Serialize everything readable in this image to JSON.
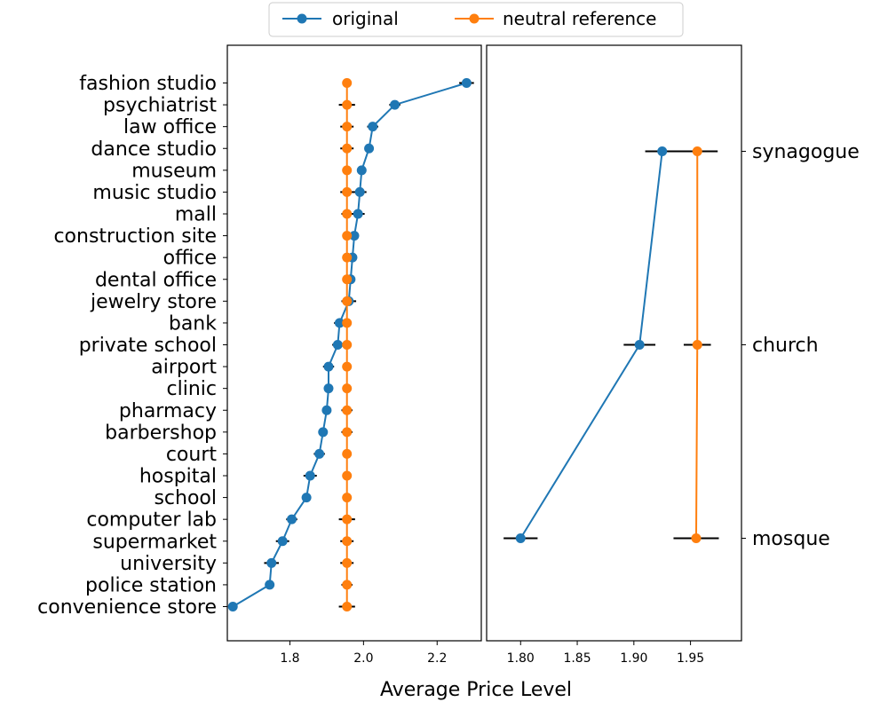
{
  "chart_data": {
    "type": "scatter",
    "xlabel": "Average Price Level",
    "legend": {
      "placement": "top-center",
      "entries": [
        {
          "name": "original",
          "color": "#1f77b4"
        },
        {
          "name": "neutral reference",
          "color": "#ff7f0e"
        }
      ]
    },
    "panels": [
      {
        "categories": [
          "fashion studio",
          "psychiatrist",
          "law office",
          "dance studio",
          "museum",
          "music studio",
          "mall",
          "construction site",
          "office",
          "dental office",
          "jewelry store",
          "bank",
          "private school",
          "airport",
          "clinic",
          "pharmacy",
          "barbershop",
          "court",
          "hospital",
          "school",
          "computer lab",
          "supermarket",
          "university",
          "police station",
          "convenience store"
        ],
        "category_axis": "left",
        "xlim": [
          1.63,
          2.32
        ],
        "xticks": [
          1.8,
          2.0,
          2.2
        ],
        "xtick_labels": [
          "1.8",
          "2.0",
          "2.2"
        ],
        "series": [
          {
            "name": "original",
            "color": "#1f77b4",
            "values": [
              2.28,
              2.085,
              2.025,
              2.015,
              1.995,
              1.99,
              1.985,
              1.975,
              1.97,
              1.965,
              1.96,
              1.935,
              1.93,
              1.905,
              1.905,
              1.9,
              1.89,
              1.88,
              1.855,
              1.845,
              1.805,
              1.78,
              1.75,
              1.745,
              1.645
            ],
            "errors": [
              0.02,
              0.015,
              0.015,
              0.01,
              0.008,
              0.018,
              0.018,
              0.012,
              0.012,
              0.012,
              0.02,
              0.015,
              0.015,
              0.015,
              0.012,
              0.012,
              0.012,
              0.015,
              0.018,
              0.012,
              0.015,
              0.018,
              0.02,
              0.01,
              0.008
            ]
          },
          {
            "name": "neutral reference",
            "color": "#ff7f0e",
            "values": [
              1.955,
              1.955,
              1.955,
              1.955,
              1.955,
              1.955,
              1.955,
              1.955,
              1.955,
              1.955,
              1.955,
              1.955,
              1.955,
              1.955,
              1.955,
              1.955,
              1.955,
              1.955,
              1.955,
              1.955,
              1.955,
              1.955,
              1.955,
              1.955,
              1.955
            ],
            "errors": [
              0.01,
              0.022,
              0.018,
              0.018,
              0.01,
              0.018,
              0.015,
              0.012,
              0.012,
              0.012,
              0.012,
              0.012,
              0.012,
              0.012,
              0.012,
              0.015,
              0.015,
              0.012,
              0.012,
              0.012,
              0.022,
              0.018,
              0.018,
              0.015,
              0.022
            ]
          }
        ]
      },
      {
        "categories": [
          "synagogue",
          "church",
          "mosque"
        ],
        "category_axis": "right",
        "xlim": [
          1.77,
          1.995
        ],
        "xticks": [
          1.8,
          1.85,
          1.9,
          1.95
        ],
        "xtick_labels": [
          "1.80",
          "1.85",
          "1.90",
          "1.95"
        ],
        "series": [
          {
            "name": "original",
            "color": "#1f77b4",
            "values": [
              1.925,
              1.905,
              1.8
            ],
            "errors": [
              0.015,
              0.014,
              0.015
            ]
          },
          {
            "name": "neutral reference",
            "color": "#ff7f0e",
            "values": [
              1.956,
              1.956,
              1.955
            ],
            "errors": [
              0.018,
              0.012,
              0.02
            ]
          }
        ]
      }
    ]
  }
}
